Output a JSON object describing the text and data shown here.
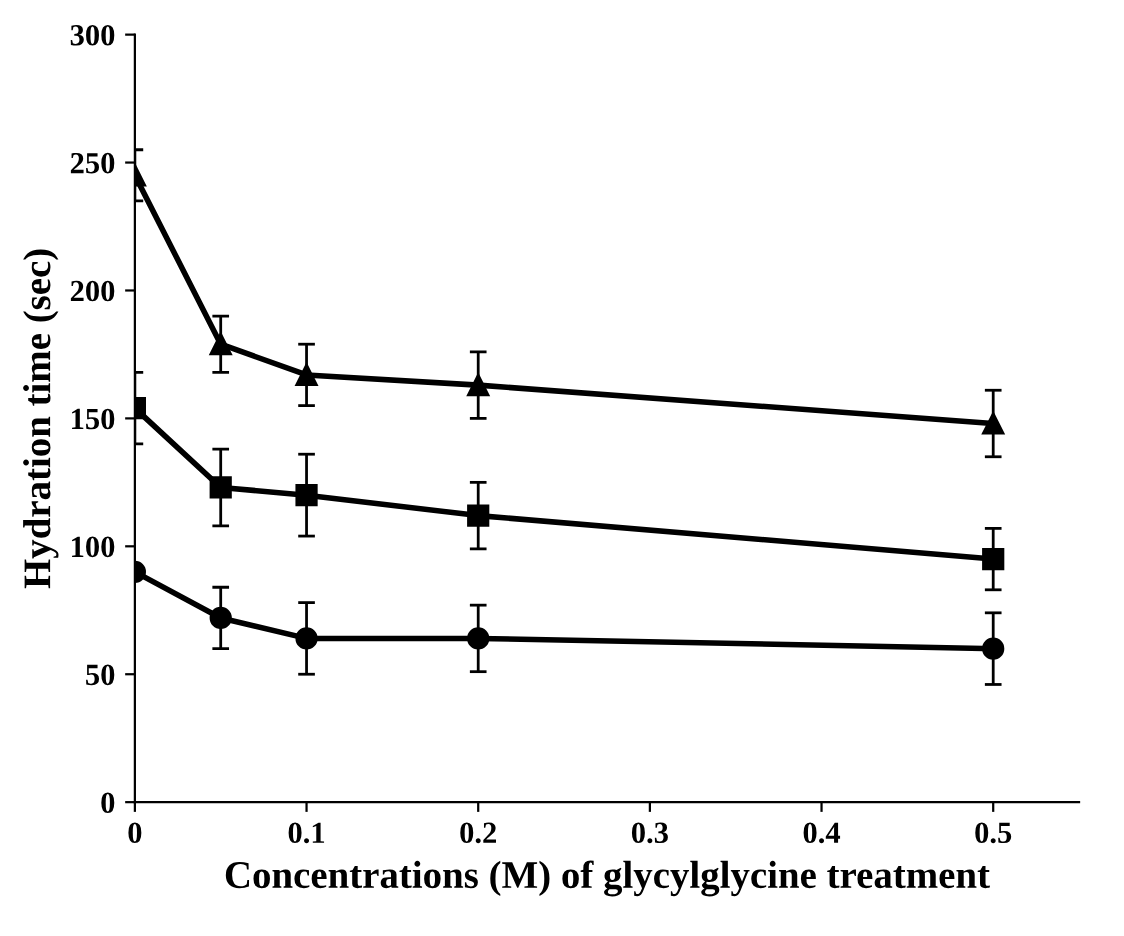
{
  "chart_data": {
    "type": "line",
    "xlabel": "Concentrations (M) of glycylglycine treatment",
    "ylabel": "Hydration time (sec)",
    "x": [
      0,
      0.05,
      0.1,
      0.2,
      0.5
    ],
    "series": [
      {
        "color": "#000000",
        "marker": "triangle",
        "values": [
          245,
          179,
          167,
          163,
          148
        ],
        "errors": [
          10,
          11,
          12,
          13,
          13
        ]
      },
      {
        "color": "#000000",
        "marker": "square",
        "values": [
          154,
          123,
          120,
          112,
          95
        ],
        "errors": [
          14,
          15,
          16,
          13,
          12
        ]
      },
      {
        "color": "#000000",
        "marker": "circle",
        "values": [
          90,
          72,
          64,
          64,
          60
        ],
        "errors": [
          null,
          12,
          14,
          13,
          14
        ]
      }
    ],
    "xlim": [
      0,
      0.55
    ],
    "xticks": [
      0,
      0.1,
      0.2,
      0.3,
      0.4,
      0.5
    ],
    "ylim": [
      0,
      300
    ],
    "yticks": [
      0,
      50,
      100,
      150,
      200,
      250,
      300
    ],
    "grid": false,
    "legend": false,
    "line_style": "solid"
  }
}
